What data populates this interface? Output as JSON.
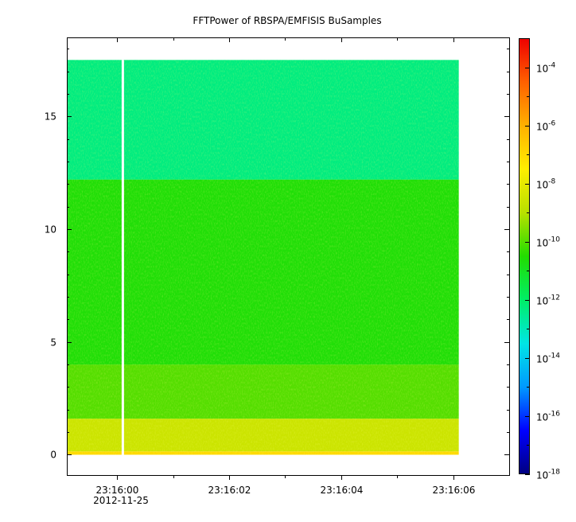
{
  "chart_data": {
    "type": "heatmap",
    "title": "FFTPower of RBSPA/EMFISIS  BuSamples",
    "xlabel": "",
    "ylabel": "",
    "x_ticks": [
      "23:16:00",
      "23:16:02",
      "23:16:04",
      "23:16:06"
    ],
    "x_date_label": "2012-11-25",
    "x_range": [
      "23:15:59.10",
      "23:16:07.00"
    ],
    "data_x_range": [
      "23:15:59.10",
      "23:16:06.10"
    ],
    "gap_at": "23:16:00.10",
    "y_ticks": [
      0,
      5,
      10,
      15
    ],
    "ylim": [
      -0.9,
      18.5
    ],
    "data_y_range": [
      0,
      17.5
    ],
    "bands": [
      {
        "y_from": 0,
        "y_to": 0.15,
        "log10_power": -7.0
      },
      {
        "y_from": 0.15,
        "y_to": 1.6,
        "log10_power": -8.6
      },
      {
        "y_from": 1.6,
        "y_to": 4.0,
        "log10_power": -10.0
      },
      {
        "y_from": 4.0,
        "y_to": 12.2,
        "log10_power": -10.6
      },
      {
        "y_from": 12.2,
        "y_to": 17.5,
        "log10_power": -12.3
      }
    ],
    "colorbar": {
      "scale": "log",
      "range": [
        1e-18,
        0.001
      ],
      "tick_labels": [
        {
          "base": "10",
          "exp": "-4"
        },
        {
          "base": "10",
          "exp": "-6"
        },
        {
          "base": "10",
          "exp": "-8"
        },
        {
          "base": "10",
          "exp": "-10"
        },
        {
          "base": "10",
          "exp": "-12"
        },
        {
          "base": "10",
          "exp": "-14"
        },
        {
          "base": "10",
          "exp": "-16"
        },
        {
          "base": "10",
          "exp": "-18"
        }
      ],
      "colors": [
        "#00007f",
        "#0000ff",
        "#0099ff",
        "#00e5e5",
        "#00ee66",
        "#22dd00",
        "#b8e000",
        "#ffee00",
        "#ffb000",
        "#ff6000",
        "#ee0000"
      ]
    }
  }
}
